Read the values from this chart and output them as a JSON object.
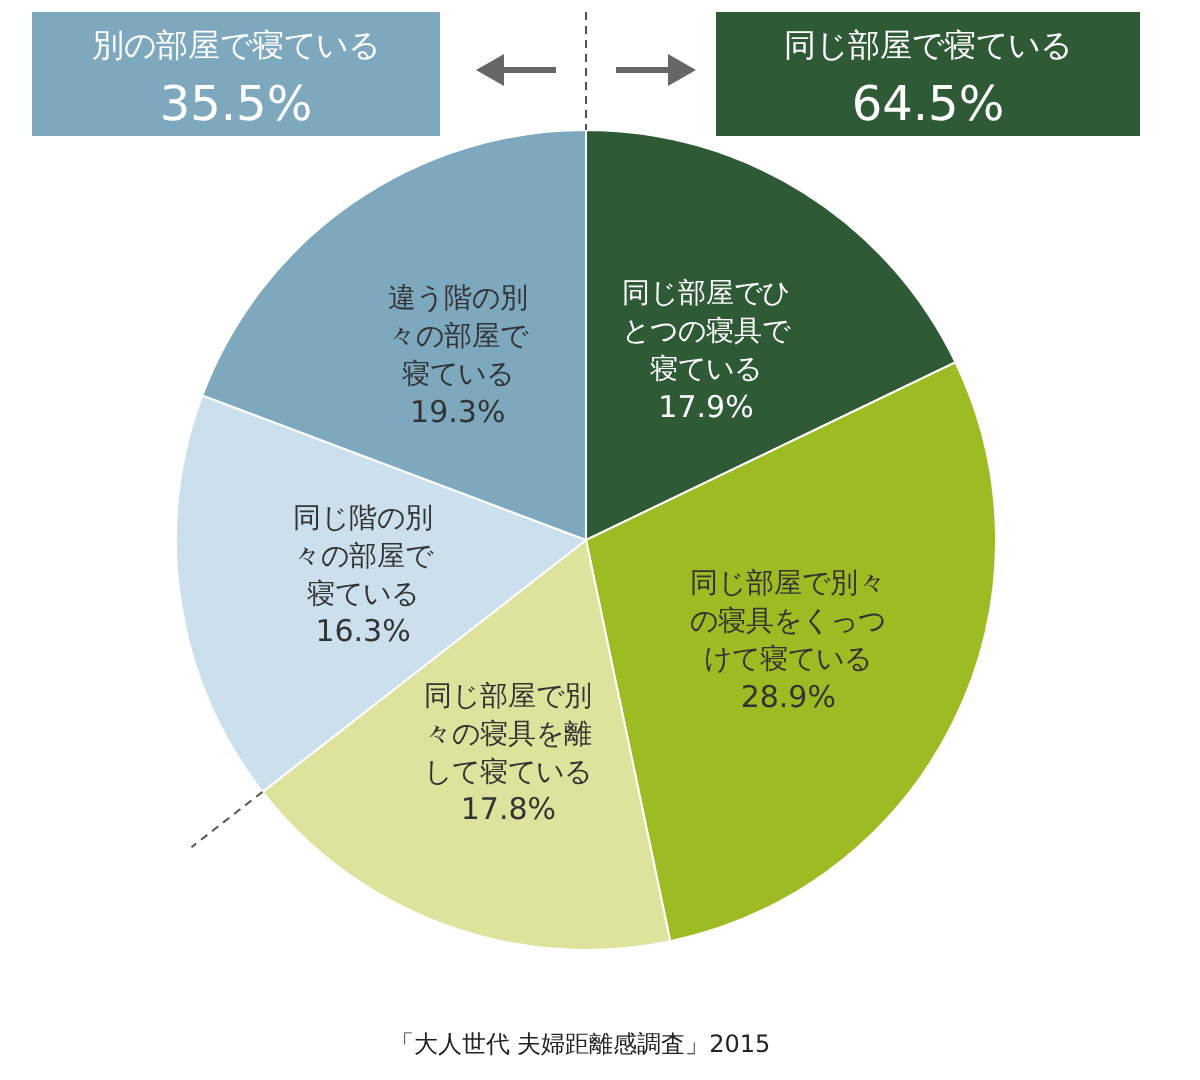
{
  "chart_data": {
    "type": "pie",
    "categories": [
      "同じ部屋でひとつの寝具で寝ている",
      "同じ部屋で別々の寝具をくっつけて寝ている",
      "同じ部屋で別々の寝具を離して寝ている",
      "同じ階の別々の部屋で寝ている",
      "違う階の別々の部屋で寝ている"
    ],
    "values": [
      17.9,
      28.9,
      17.8,
      16.3,
      19.3
    ],
    "value_labels": [
      "17.9%",
      "28.9%",
      "17.8%",
      "16.3%",
      "19.3%"
    ],
    "colors": [
      "#2f5a36",
      "#9dbb22",
      "#dde39c",
      "#cbe0ec",
      "#7ea8bd"
    ],
    "annotations": [
      "別の部屋で寝ている",
      "35.5%",
      "同じ部屋で寝ている",
      "64.5%",
      "「大人世代 夫婦距離感調査」2015"
    ]
  }
}
